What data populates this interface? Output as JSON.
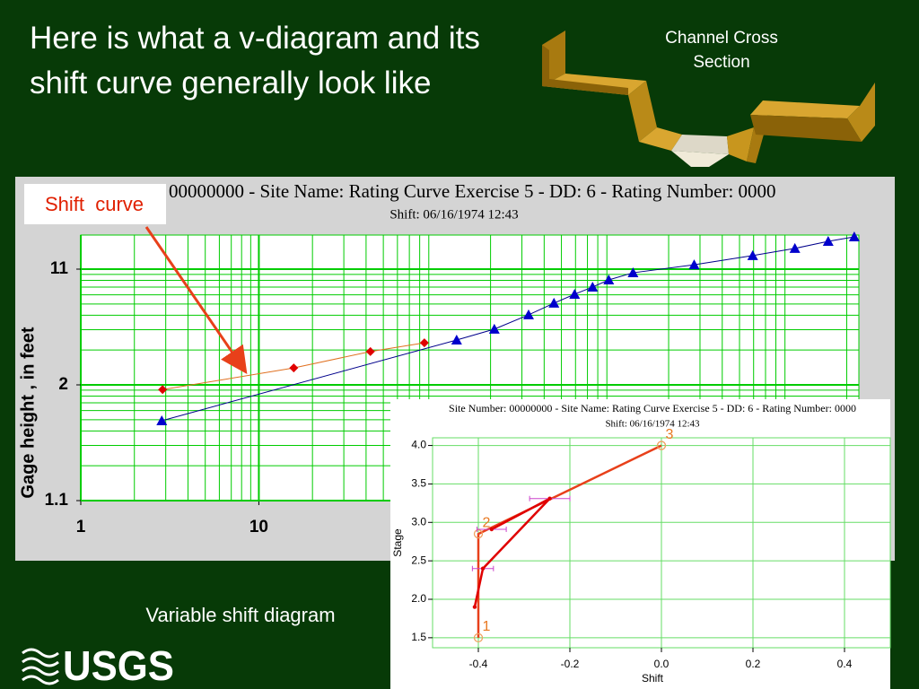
{
  "slide": {
    "title": "Here is what a v-diagram and its shift curve generally look like",
    "cross_section_label": "Channel Cross Section",
    "caption": "Variable shift diagram",
    "logo": "USGS"
  },
  "chart_data": [
    {
      "type": "line",
      "title": "00000000 - Site Name: Rating Curve Exercise 5 - DD: 6 - Rating Number: 0000",
      "subtitle": "Shift: 06/16/1974 12:43",
      "ylabel": "Gage height , in feet",
      "annotation": "Shift  curve",
      "xscale": "log",
      "yscale": "log",
      "y_log_offset": 1,
      "xlim": [
        1,
        23400
      ],
      "ylim": [
        1.1,
        20.7
      ],
      "xticks": [
        1,
        10
      ],
      "yticks": [
        1.1,
        2,
        11
      ],
      "xminor": [
        2,
        3,
        4,
        5,
        6,
        7,
        8,
        9,
        20,
        30,
        40,
        50,
        60,
        70,
        80,
        90,
        200,
        300,
        400,
        500,
        600,
        700,
        800,
        900,
        2000,
        3000,
        4000,
        5000,
        6000,
        7000,
        8000,
        9000,
        20000
      ],
      "yminor": [
        1.2,
        1.3,
        1.4,
        1.5,
        1.6,
        1.7,
        1.8,
        1.9,
        3,
        4,
        5,
        6,
        7,
        8,
        9,
        10
      ],
      "grid": true,
      "grid_color": "#00cc00",
      "series": [
        {
          "color": "#00008b",
          "marker": "triangle",
          "marker_color": "#0000cc",
          "x": [
            2.85,
            129,
            210,
            327,
            454,
            593,
            748,
            922,
            1262,
            2782,
            5929,
            10230,
            15740,
            22050
          ],
          "values": [
            1.49,
            3.44,
            4.03,
            5.03,
            6.08,
            7.07,
            8.0,
            9.07,
            10.3,
            11.9,
            14.1,
            16.1,
            18.4,
            20.0
          ]
        },
        {
          "color": "#e07020",
          "marker": "diamond",
          "marker_color": "#e00000",
          "x": [
            2.88,
            15.7,
            42.3,
            85
          ],
          "values": [
            1.91,
            2.4,
            2.94,
            3.31
          ]
        }
      ]
    },
    {
      "type": "line",
      "title": "Site Number: 00000000 - Site Name: Rating Curve Exercise 5 - DD: 6 - Rating Number: 0000",
      "subtitle": "Shift: 06/16/1974 12:43",
      "xlabel": "Shift",
      "ylabel": "Stage",
      "xlim": [
        -0.5,
        0.5
      ],
      "ylim": [
        1.37,
        4.1
      ],
      "xticks": [
        -0.4,
        -0.2,
        {
          "value": 0,
          "label": "0.0"
        },
        0.2,
        0.4
      ],
      "yticks": [
        1.5,
        {
          "value": 2,
          "label": "2.0"
        },
        2.5,
        {
          "value": 3,
          "label": "3.0"
        },
        3.5,
        {
          "value": 4,
          "label": "4.0"
        }
      ],
      "grid": true,
      "grid_color": "#66dd66",
      "series": [
        {
          "color": "#e8401a",
          "marker": "circle-open",
          "marker_color": "#f0a060",
          "x": [
            -0.4,
            -0.4,
            0
          ],
          "values": [
            1.5,
            2.85,
            4.0
          ],
          "point_labels": [
            "1",
            "2",
            "3"
          ]
        },
        {
          "color": "#e00000",
          "marker": "dot",
          "marker_color": "#e00000",
          "error_color": "#cc44cc",
          "x": [
            -0.371,
            -0.244,
            -0.39,
            -0.408
          ],
          "values": [
            2.91,
            3.31,
            2.4,
            1.9
          ],
          "x_errors": [
            0.032,
            0.044,
            0.023,
            null
          ]
        }
      ]
    }
  ]
}
